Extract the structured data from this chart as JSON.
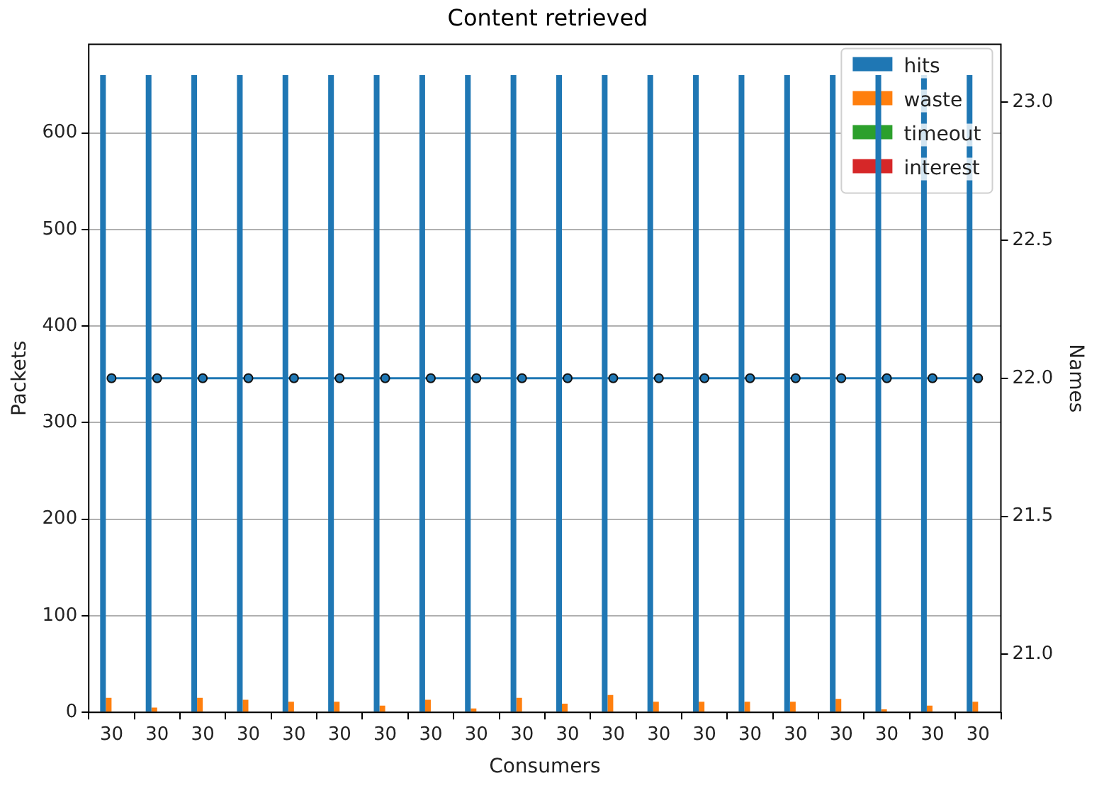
{
  "chart_data": {
    "type": "bar",
    "title": "Content retrieved",
    "xlabel": "Consumers",
    "ylabel": "Packets",
    "y2label": "Names",
    "categories": [
      "30",
      "30",
      "30",
      "30",
      "30",
      "30",
      "30",
      "30",
      "30",
      "30",
      "30",
      "30",
      "30",
      "30",
      "30",
      "30",
      "30",
      "30",
      "30",
      "30"
    ],
    "series": [
      {
        "name": "hits",
        "color": "#1f77b4",
        "values": [
          660,
          660,
          660,
          660,
          660,
          660,
          660,
          660,
          660,
          660,
          660,
          660,
          660,
          660,
          660,
          660,
          660,
          660,
          660,
          660
        ]
      },
      {
        "name": "waste",
        "color": "#ff7f0e",
        "values": [
          15,
          5,
          15,
          13,
          11,
          11,
          7,
          13,
          4,
          15,
          9,
          18,
          11,
          11,
          11,
          11,
          14,
          3,
          7,
          11
        ]
      },
      {
        "name": "timeout",
        "color": "#2ca02c",
        "values": [
          0,
          0,
          0,
          0,
          0,
          0,
          0,
          0,
          0,
          0,
          0,
          0,
          0,
          0,
          0,
          0,
          0,
          0,
          0,
          0
        ]
      },
      {
        "name": "interest",
        "color": "#d62728",
        "values": [
          0,
          0,
          0,
          0,
          0,
          0,
          0,
          0,
          0,
          0,
          0,
          0,
          0,
          0,
          0,
          0,
          0,
          0,
          0,
          0
        ]
      },
      {
        "type": "line",
        "axis": "y2",
        "color": "#1f77b4",
        "values": [
          22,
          22,
          22,
          22,
          22,
          22,
          22,
          22,
          22,
          22,
          22,
          22,
          22,
          22,
          22,
          22,
          22,
          22,
          22,
          22
        ]
      }
    ],
    "ylim": [
      0,
      692
    ],
    "yticks": [
      0,
      100,
      200,
      300,
      400,
      500,
      600
    ],
    "y2lim": [
      20.79,
      23.21
    ],
    "y2ticks": [
      {
        "value": 21,
        "label": "21.0"
      },
      {
        "value": 21.5,
        "label": "21.5"
      },
      {
        "value": 22,
        "label": "22.0"
      },
      {
        "value": 22.5,
        "label": "22.5"
      },
      {
        "value": 23,
        "label": "23.0"
      }
    ],
    "grid": "y",
    "legend": "top right",
    "marker": "circle",
    "line_style": "solid"
  }
}
